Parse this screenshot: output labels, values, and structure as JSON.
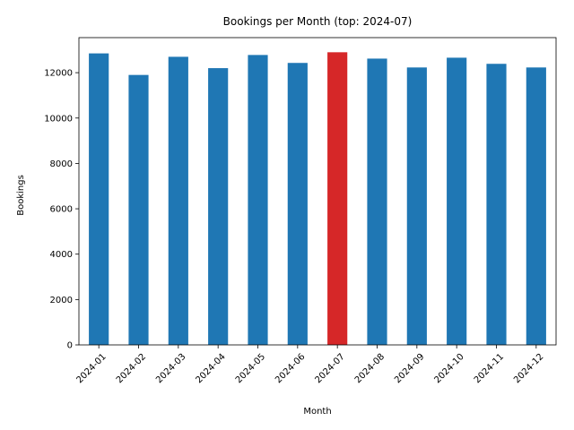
{
  "chart_data": {
    "type": "bar",
    "title": "Bookings per Month (top: 2024-07)",
    "xlabel": "Month",
    "ylabel": "Bookings",
    "categories": [
      "2024-01",
      "2024-02",
      "2024-03",
      "2024-04",
      "2024-05",
      "2024-06",
      "2024-07",
      "2024-08",
      "2024-09",
      "2024-10",
      "2024-11",
      "2024-12"
    ],
    "values": [
      12850,
      11900,
      12700,
      12200,
      12780,
      12430,
      12900,
      12620,
      12230,
      12660,
      12390,
      12230
    ],
    "highlight_category": "2024-07",
    "ylim": [
      0,
      13545
    ],
    "yticks": [
      0,
      2000,
      4000,
      6000,
      8000,
      10000,
      12000
    ],
    "grid": false,
    "colors": {
      "bar": "#1f77b4",
      "highlight": "#d62728",
      "axis": "#000000"
    }
  }
}
